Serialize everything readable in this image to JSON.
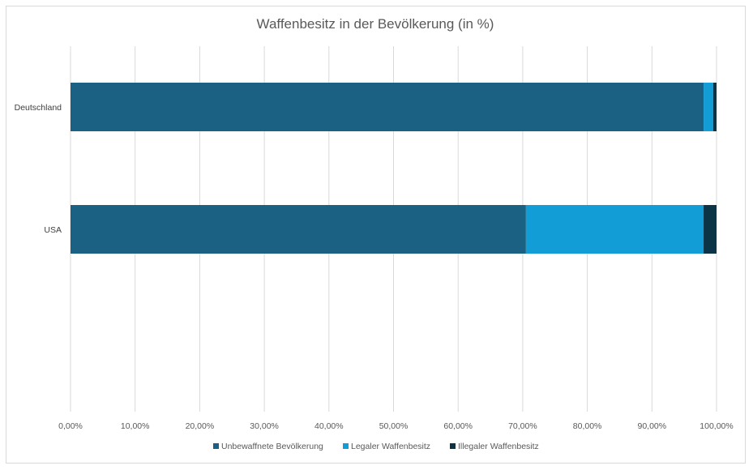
{
  "chart_data": {
    "type": "bar",
    "orientation": "horizontal",
    "stacked": true,
    "title": "Waffenbesitz in der Bevölkerung (in %)",
    "categories": [
      "Deutschland",
      "USA"
    ],
    "series": [
      {
        "name": "Unbewaffnete Bevölkerung",
        "color": "#1a6184",
        "values": [
          98.0,
          70.5
        ]
      },
      {
        "name": "Legaler Waffenbesitz",
        "color": "#129dd7",
        "values": [
          1.5,
          27.5
        ]
      },
      {
        "name": "Illegaler Waffenbesitz",
        "color": "#0c3447",
        "values": [
          0.5,
          2.0
        ]
      }
    ],
    "xlim": [
      0,
      100
    ],
    "x_ticks": [
      "0,00%",
      "10,00%",
      "20,00%",
      "30,00%",
      "40,00%",
      "50,00%",
      "60,00%",
      "70,00%",
      "80,00%",
      "90,00%",
      "100,00%"
    ],
    "grid": true,
    "legend": "bottom"
  }
}
